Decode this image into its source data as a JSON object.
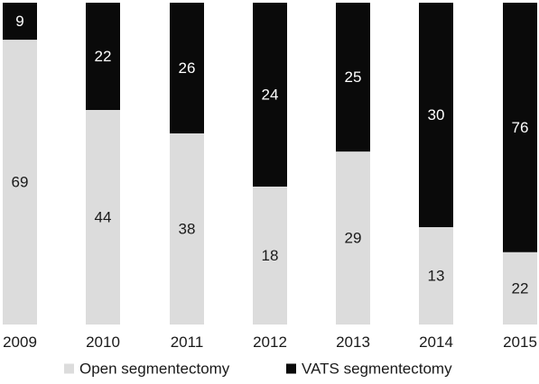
{
  "chart_data": {
    "type": "bar",
    "stacked": true,
    "percent_stacked": true,
    "categories": [
      "2009",
      "2010",
      "2011",
      "2012",
      "2013",
      "2014",
      "2015"
    ],
    "series": [
      {
        "name": "Open segmentectomy",
        "color": "#dcdcdc",
        "label_color": "#1a1a1a",
        "values": [
          69,
          44,
          38,
          18,
          29,
          13,
          22
        ]
      },
      {
        "name": "VATS segmentectomy",
        "color": "#0a0a0a",
        "label_color": "#ffffff",
        "values": [
          9,
          22,
          26,
          24,
          25,
          30,
          76
        ]
      }
    ],
    "legend_position": "bottom",
    "grid": false,
    "show_value_labels": true
  }
}
